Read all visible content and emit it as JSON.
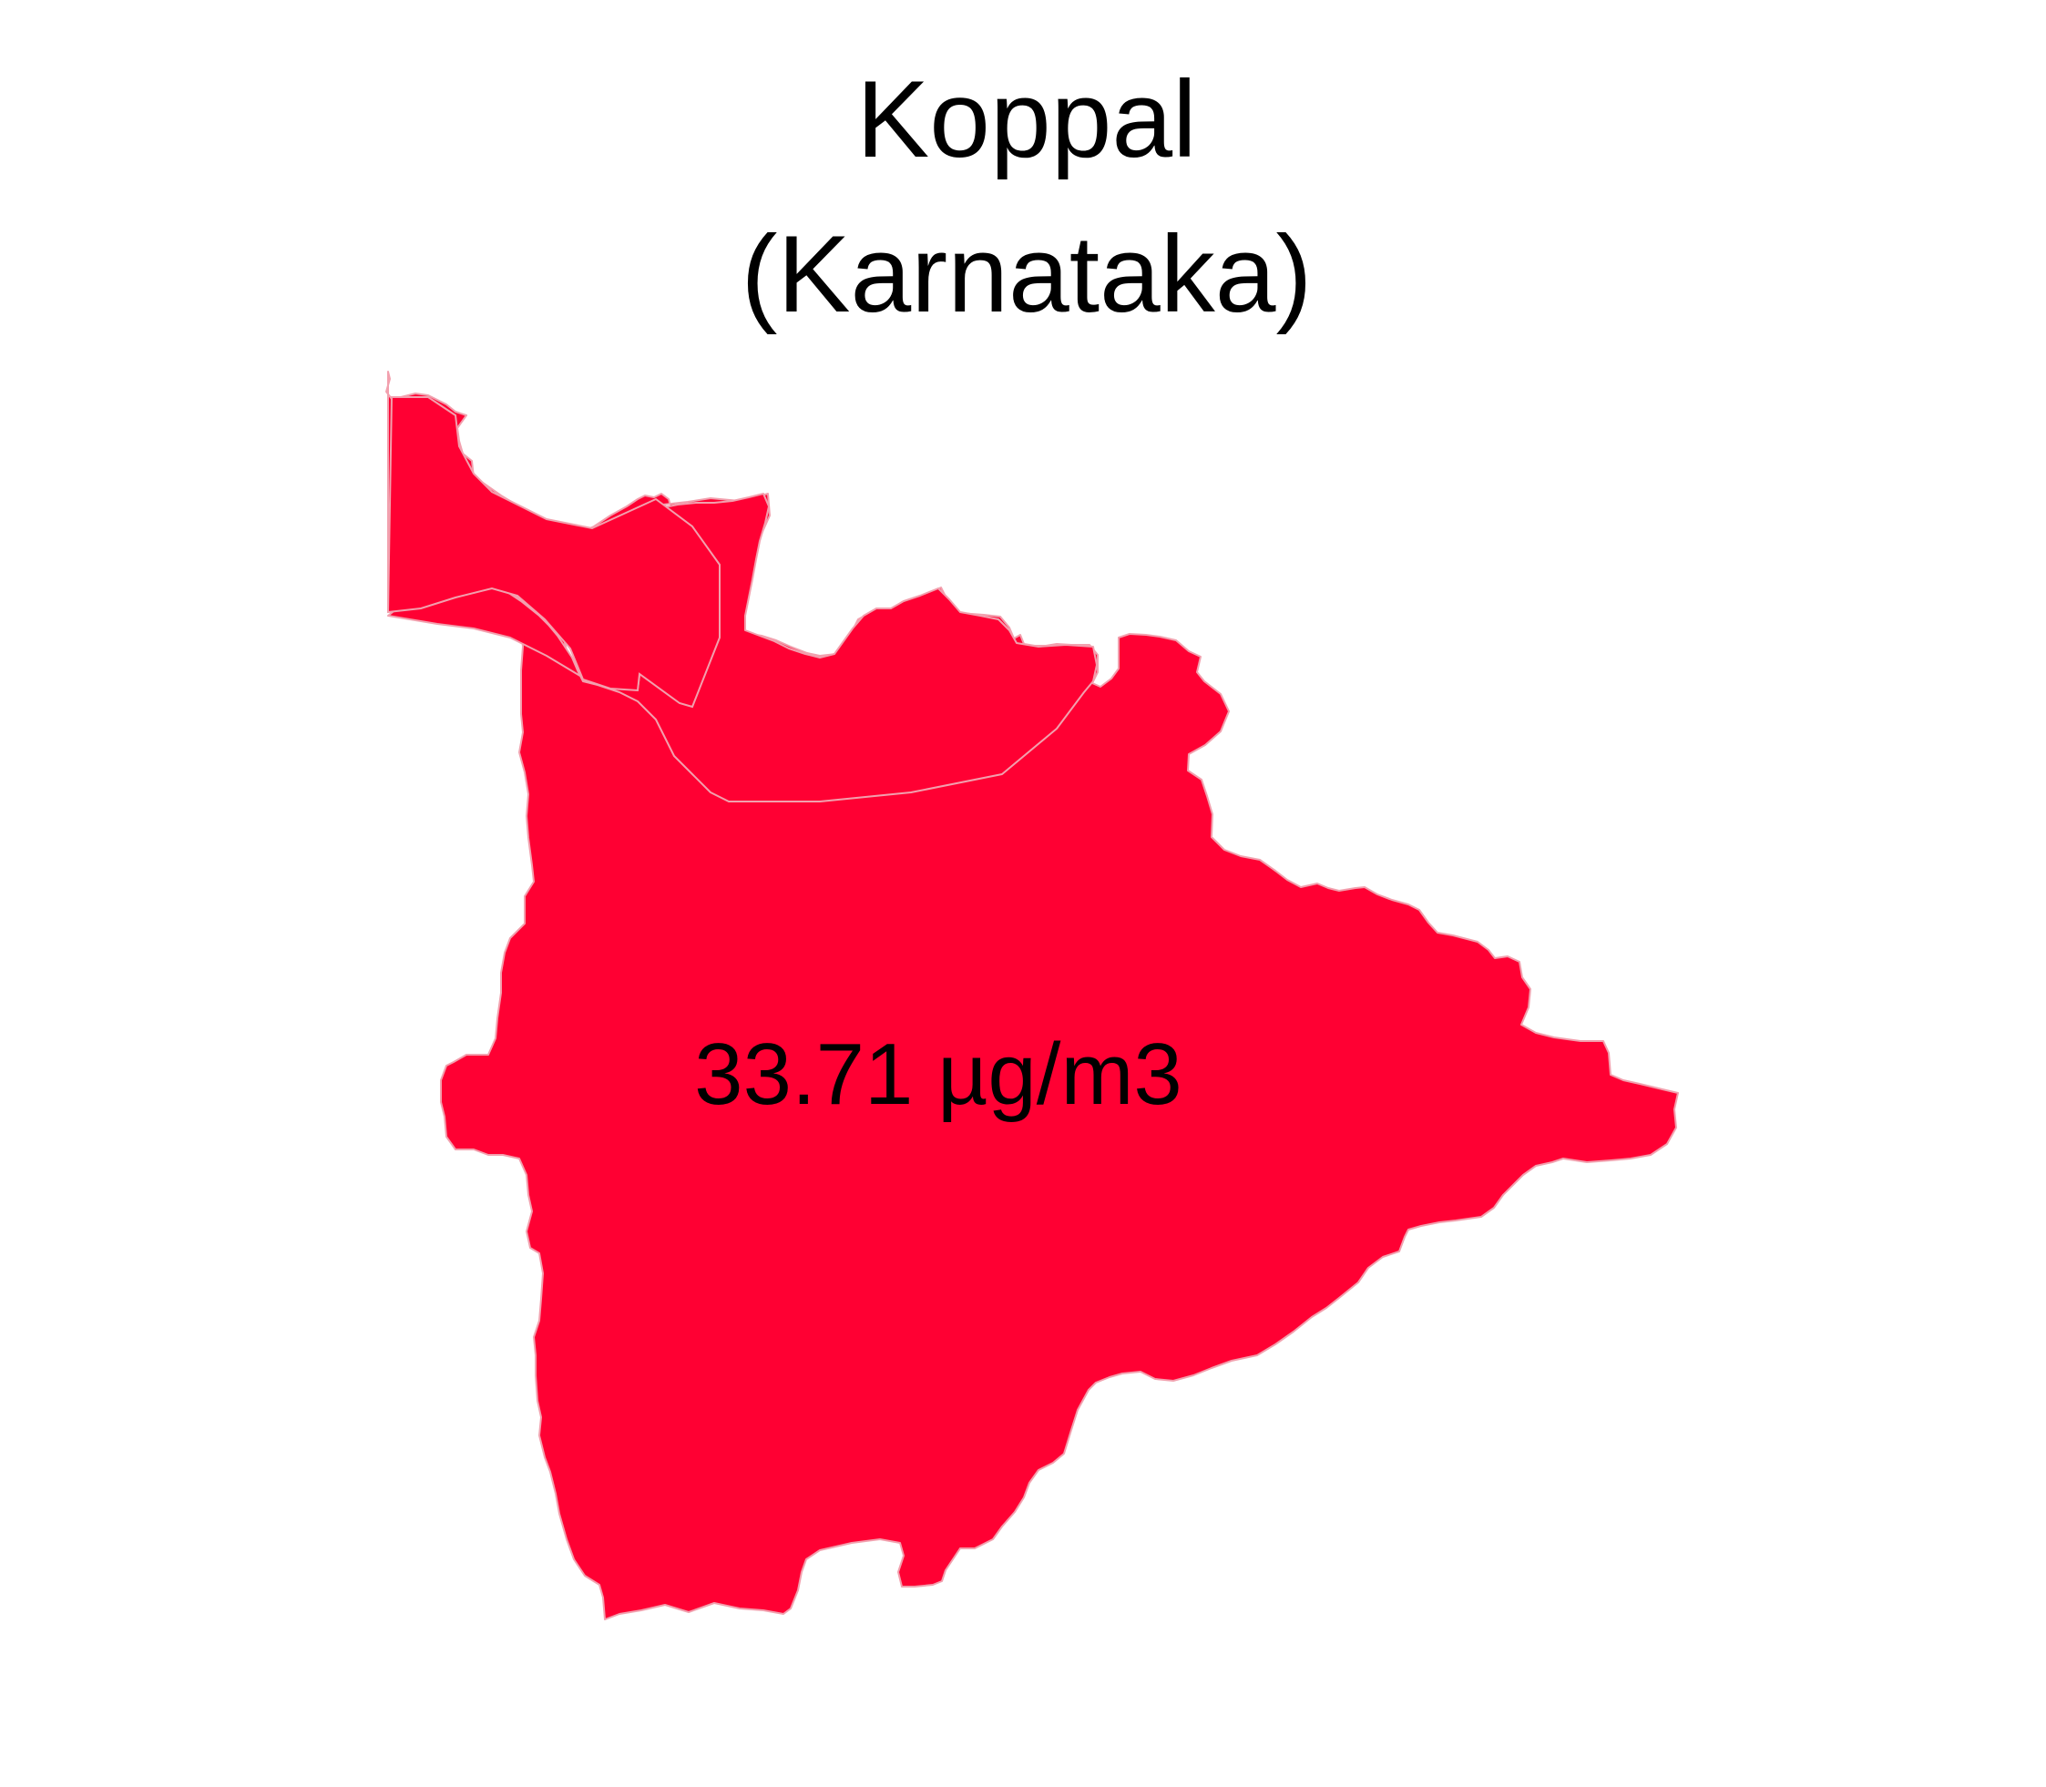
{
  "map": {
    "title_line1": "Koppal",
    "title_line2": "(Karnataka)",
    "region": {
      "name": "Koppal",
      "state": "Karnataka",
      "value": 33.71,
      "unit": "µg/m3",
      "label": "33.71 µg/m3",
      "fill_color": "#ff0033"
    },
    "background_color": "#ffffff"
  }
}
